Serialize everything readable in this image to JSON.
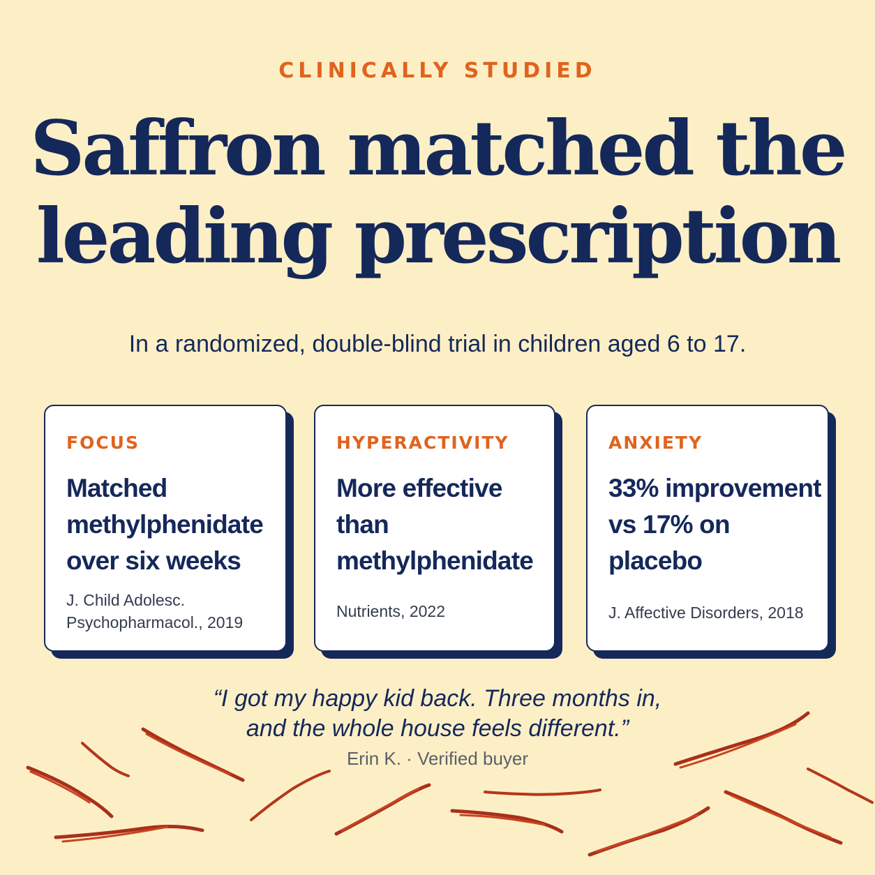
{
  "eyebrow": "CLINICALLY STUDIED",
  "headline": {
    "line1": "Saffron matched the",
    "line2": "leading prescription"
  },
  "subhead": "In a randomized, double-blind trial in children aged 6 to 17.",
  "cards": [
    {
      "category": "FOCUS",
      "claim": [
        "Matched",
        "methylphenidate",
        "over six weeks"
      ],
      "source": [
        "J. Child Adolesc.",
        "Psychopharmacol., 2019"
      ]
    },
    {
      "category": "HYPERACTIVITY",
      "claim": [
        "More effective",
        "than",
        "methylphenidate"
      ],
      "source": [
        "Nutrients, 2022"
      ]
    },
    {
      "category": "ANXIETY",
      "claim": [
        "33% improvement",
        "vs 17% on",
        "placebo"
      ],
      "source": [
        "J. Affective Disorders, 2018"
      ]
    }
  ],
  "testimonial": {
    "quote_line1": "“I got my happy kid back. Three months in,",
    "quote_line2": "and the whole house feels different.”",
    "attribution": "Erin K. · Verified buyer"
  },
  "colors": {
    "background": "#fcefc6",
    "navy": "#15285a",
    "orange": "#e0631e",
    "saffron_thread": "#b8321c"
  }
}
